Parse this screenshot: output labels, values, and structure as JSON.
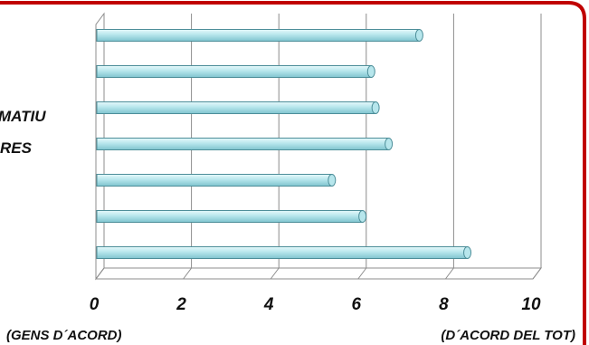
{
  "colors": {
    "frame": "#c00000",
    "bar_fill_top": "#e6f9fb",
    "bar_fill_mid": "#b7e6ec",
    "bar_fill_bot": "#7fc4cf",
    "bar_stroke": "#4d8e99",
    "grid": "#8c8c8c"
  },
  "partial_labels": [
    "MATIU",
    "RES"
  ],
  "chart_data": {
    "type": "bar",
    "orientation": "horizontal",
    "projection": "3d",
    "values": [
      7.4,
      6.3,
      6.4,
      6.7,
      5.4,
      6.1,
      8.5
    ],
    "xlim": [
      0,
      10
    ],
    "xticks": [
      "0",
      "2",
      "4",
      "6",
      "8",
      "10"
    ],
    "xlabel_left": "(GENS D´ACORD)",
    "xlabel_right": "(D´ACORD DEL TOT)",
    "grid": true
  }
}
